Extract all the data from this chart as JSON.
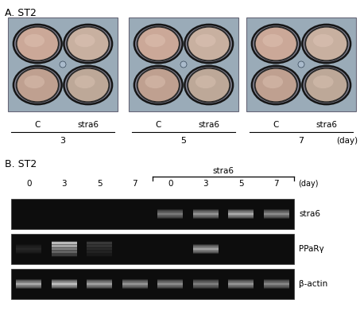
{
  "panel_a_label": "A. ST2",
  "panel_b_label": "B. ST2",
  "panel_a_groups": [
    "3",
    "5",
    "7"
  ],
  "panel_a_subgroups": [
    "C",
    "stra6"
  ],
  "panel_a_day_label": "(day)",
  "panel_b_day_label": "(day)",
  "panel_b_columns": [
    "0",
    "3",
    "5",
    "7",
    "0",
    "3",
    "5",
    "7"
  ],
  "stra6_label": "stra6",
  "gel_labels": [
    "stra6",
    "PPaRγ",
    "β-actin"
  ],
  "stra6_intensities": [
    0.04,
    0.04,
    0.04,
    0.06,
    0.5,
    0.62,
    0.72,
    0.58
  ],
  "ppar_intensities": [
    0.12,
    1.0,
    0.25,
    0.05,
    0.05,
    0.68,
    0.05,
    0.05
  ],
  "bactin_intensities": [
    0.72,
    0.82,
    0.68,
    0.62,
    0.58,
    0.52,
    0.62,
    0.56
  ],
  "ppar_has_smear": [
    false,
    true,
    true,
    false,
    false,
    false,
    false,
    false
  ],
  "fig_bg": "#ffffff",
  "label_color": "#000000",
  "plate_bg": "#9aabb8",
  "well_pink_light": "#d4b0a0",
  "well_pink_dark": "#b89888",
  "well_rim_outer": "#1a1a1a",
  "well_rim_inner": "#555555",
  "gel_bg": "#0d0d0d",
  "gel_border": "#404040"
}
